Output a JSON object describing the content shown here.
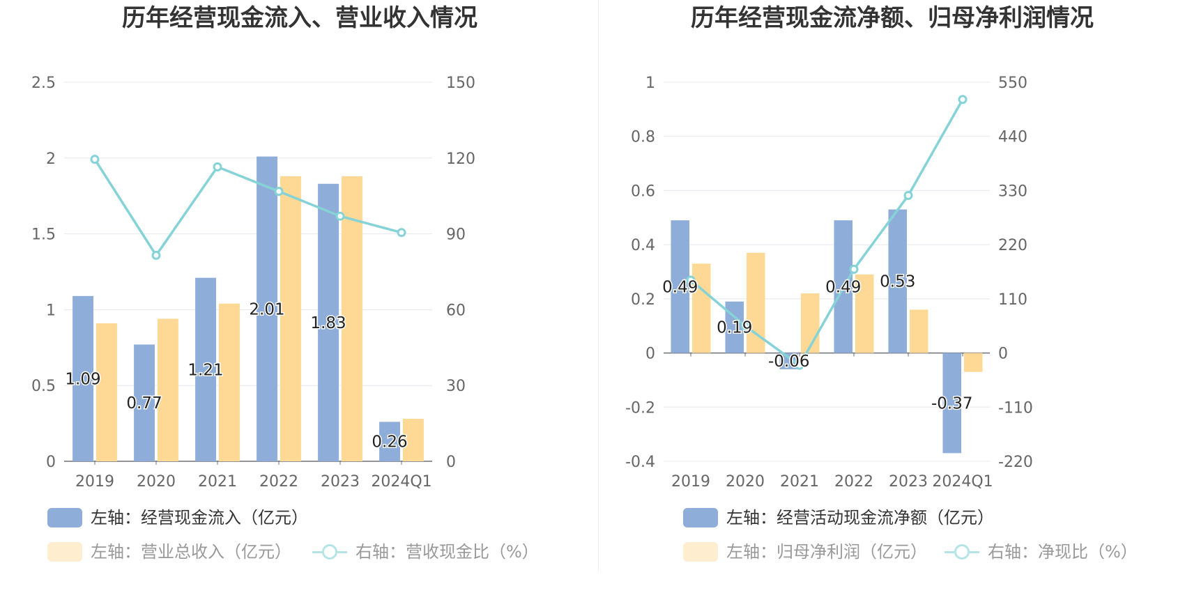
{
  "colors": {
    "bar1": "#8eadd9",
    "bar2": "#fed895",
    "line": "#85d3d6",
    "grid": "#e6e8ee",
    "axis_text": "#666666",
    "legend_active": "#333333",
    "legend_muted": "#999999"
  },
  "chart_data": [
    {
      "type": "bar",
      "title": "历年经营现金流入、营业收入情况",
      "categories": [
        "2019",
        "2020",
        "2021",
        "2022",
        "2023",
        "2024Q1"
      ],
      "y_left": {
        "min": 0,
        "max": 2.5,
        "ticks": [
          "0",
          "0.5",
          "1",
          "1.5",
          "2",
          "2.5"
        ]
      },
      "y_right": {
        "min": 0,
        "max": 150,
        "ticks": [
          "0",
          "30",
          "60",
          "90",
          "120",
          "150"
        ]
      },
      "grid": true,
      "legend_placement": "bottom",
      "series": [
        {
          "name": "左轴：经营现金流入（亿元）",
          "type": "bar",
          "axis": "left",
          "values": [
            1.09,
            0.77,
            1.21,
            2.01,
            1.83,
            0.26
          ],
          "labels": [
            "1.09",
            "0.77",
            "1.21",
            "2.01",
            "1.83",
            "0.26"
          ]
        },
        {
          "name": "左轴：营业总收入（亿元）",
          "type": "bar",
          "axis": "left",
          "values": [
            0.91,
            0.94,
            1.04,
            1.88,
            1.88,
            0.28
          ]
        },
        {
          "name": "右轴：营收现金比（%）",
          "type": "line",
          "axis": "right",
          "values": [
            119.5,
            81.5,
            116.5,
            106.8,
            97.0,
            90.5
          ]
        }
      ]
    },
    {
      "type": "bar",
      "title": "历年经营现金流净额、归母净利润情况",
      "categories": [
        "2019",
        "2020",
        "2021",
        "2022",
        "2023",
        "2024Q1"
      ],
      "y_left": {
        "min": -0.4,
        "max": 1,
        "ticks": [
          "-0.4",
          "-0.2",
          "0",
          "0.2",
          "0.4",
          "0.6",
          "0.8",
          "1"
        ]
      },
      "y_right": {
        "min": -220,
        "max": 550,
        "ticks": [
          "-220",
          "-110",
          "0",
          "110",
          "220",
          "330",
          "440",
          "550"
        ]
      },
      "grid": true,
      "legend_placement": "bottom",
      "series": [
        {
          "name": "左轴：经营活动现金流净额（亿元）",
          "type": "bar",
          "axis": "left",
          "values": [
            0.49,
            0.19,
            -0.06,
            0.49,
            0.53,
            -0.37
          ],
          "labels": [
            "0.49",
            "0.19",
            "-0.06",
            "0.49",
            "0.53",
            "-0.37"
          ]
        },
        {
          "name": "左轴：归母净利润（亿元）",
          "type": "bar",
          "axis": "left",
          "values": [
            0.33,
            0.37,
            0.22,
            0.29,
            0.16,
            -0.07
          ]
        },
        {
          "name": "右轴：净现比（%）",
          "type": "line",
          "axis": "right",
          "values": [
            148,
            55,
            -25,
            170,
            320,
            515
          ]
        }
      ]
    }
  ]
}
